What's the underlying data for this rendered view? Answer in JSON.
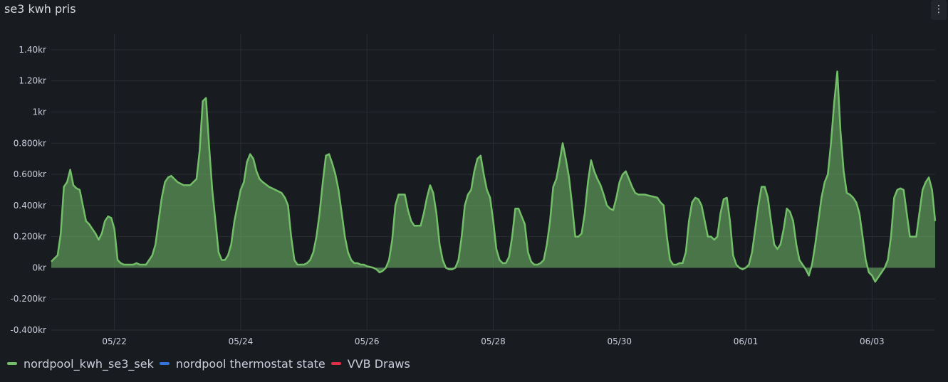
{
  "panel": {
    "title": "se3 kwh pris",
    "menu_icon": "⋮"
  },
  "chart_data": {
    "type": "area",
    "title": "se3 kwh pris",
    "ylim": [
      -0.4,
      1.5
    ],
    "yticks": [
      {
        "v": 1.4,
        "label": "1.40kr"
      },
      {
        "v": 1.2,
        "label": "1.20kr"
      },
      {
        "v": 1.0,
        "label": "1kr"
      },
      {
        "v": 0.8,
        "label": "0.800kr"
      },
      {
        "v": 0.6,
        "label": "0.600kr"
      },
      {
        "v": 0.4,
        "label": "0.400kr"
      },
      {
        "v": 0.2,
        "label": "0.200kr"
      },
      {
        "v": 0.0,
        "label": "0kr"
      },
      {
        "v": -0.2,
        "label": "-0.200kr"
      },
      {
        "v": -0.4,
        "label": "-0.400kr"
      }
    ],
    "xlim_days": [
      0,
      14
    ],
    "xticks": [
      {
        "day": 1,
        "label": "05/22"
      },
      {
        "day": 3,
        "label": "05/24"
      },
      {
        "day": 5,
        "label": "05/26"
      },
      {
        "day": 7,
        "label": "05/28"
      },
      {
        "day": 9,
        "label": "05/30"
      },
      {
        "day": 11,
        "label": "06/01"
      },
      {
        "day": 13,
        "label": "06/03"
      }
    ],
    "grid": true,
    "legend_position": "bottom-left",
    "series": [
      {
        "name": "nordpool_kwh_se3_sek",
        "color": "#73bf69",
        "fill": "#73bf69",
        "points": [
          [
            0.0,
            0.04
          ],
          [
            0.05,
            0.06
          ],
          [
            0.1,
            0.08
          ],
          [
            0.15,
            0.22
          ],
          [
            0.2,
            0.52
          ],
          [
            0.25,
            0.55
          ],
          [
            0.3,
            0.63
          ],
          [
            0.35,
            0.53
          ],
          [
            0.4,
            0.51
          ],
          [
            0.45,
            0.5
          ],
          [
            0.5,
            0.4
          ],
          [
            0.55,
            0.3
          ],
          [
            0.6,
            0.28
          ],
          [
            0.65,
            0.25
          ],
          [
            0.7,
            0.22
          ],
          [
            0.75,
            0.18
          ],
          [
            0.8,
            0.22
          ],
          [
            0.85,
            0.3
          ],
          [
            0.9,
            0.33
          ],
          [
            0.95,
            0.32
          ],
          [
            1.0,
            0.25
          ],
          [
            1.05,
            0.05
          ],
          [
            1.1,
            0.03
          ],
          [
            1.15,
            0.02
          ],
          [
            1.2,
            0.02
          ],
          [
            1.3,
            0.02
          ],
          [
            1.35,
            0.03
          ],
          [
            1.4,
            0.02
          ],
          [
            1.5,
            0.02
          ],
          [
            1.55,
            0.05
          ],
          [
            1.6,
            0.08
          ],
          [
            1.65,
            0.15
          ],
          [
            1.7,
            0.3
          ],
          [
            1.75,
            0.45
          ],
          [
            1.8,
            0.55
          ],
          [
            1.85,
            0.58
          ],
          [
            1.9,
            0.59
          ],
          [
            1.95,
            0.57
          ],
          [
            2.0,
            0.55
          ],
          [
            2.05,
            0.54
          ],
          [
            2.1,
            0.53
          ],
          [
            2.15,
            0.53
          ],
          [
            2.2,
            0.53
          ],
          [
            2.25,
            0.55
          ],
          [
            2.3,
            0.57
          ],
          [
            2.35,
            0.75
          ],
          [
            2.4,
            1.07
          ],
          [
            2.45,
            1.09
          ],
          [
            2.5,
            0.78
          ],
          [
            2.55,
            0.5
          ],
          [
            2.6,
            0.3
          ],
          [
            2.65,
            0.1
          ],
          [
            2.7,
            0.05
          ],
          [
            2.75,
            0.05
          ],
          [
            2.8,
            0.08
          ],
          [
            2.85,
            0.15
          ],
          [
            2.9,
            0.3
          ],
          [
            2.95,
            0.4
          ],
          [
            3.0,
            0.5
          ],
          [
            3.05,
            0.55
          ],
          [
            3.1,
            0.68
          ],
          [
            3.15,
            0.73
          ],
          [
            3.2,
            0.7
          ],
          [
            3.25,
            0.62
          ],
          [
            3.3,
            0.57
          ],
          [
            3.35,
            0.55
          ],
          [
            3.45,
            0.52
          ],
          [
            3.55,
            0.5
          ],
          [
            3.65,
            0.48
          ],
          [
            3.7,
            0.45
          ],
          [
            3.75,
            0.4
          ],
          [
            3.8,
            0.2
          ],
          [
            3.85,
            0.05
          ],
          [
            3.9,
            0.02
          ],
          [
            3.95,
            0.02
          ],
          [
            4.0,
            0.02
          ],
          [
            4.05,
            0.03
          ],
          [
            4.1,
            0.05
          ],
          [
            4.15,
            0.1
          ],
          [
            4.2,
            0.2
          ],
          [
            4.25,
            0.35
          ],
          [
            4.3,
            0.55
          ],
          [
            4.35,
            0.72
          ],
          [
            4.4,
            0.73
          ],
          [
            4.45,
            0.67
          ],
          [
            4.5,
            0.6
          ],
          [
            4.55,
            0.5
          ],
          [
            4.6,
            0.35
          ],
          [
            4.65,
            0.2
          ],
          [
            4.7,
            0.1
          ],
          [
            4.75,
            0.05
          ],
          [
            4.8,
            0.03
          ],
          [
            4.85,
            0.03
          ],
          [
            4.9,
            0.02
          ],
          [
            4.95,
            0.02
          ],
          [
            5.0,
            0.01
          ],
          [
            5.1,
            0.0
          ],
          [
            5.15,
            -0.01
          ],
          [
            5.2,
            -0.03
          ],
          [
            5.25,
            -0.02
          ],
          [
            5.3,
            0.0
          ],
          [
            5.35,
            0.05
          ],
          [
            5.4,
            0.18
          ],
          [
            5.45,
            0.4
          ],
          [
            5.5,
            0.47
          ],
          [
            5.55,
            0.47
          ],
          [
            5.6,
            0.47
          ],
          [
            5.65,
            0.37
          ],
          [
            5.7,
            0.3
          ],
          [
            5.75,
            0.27
          ],
          [
            5.8,
            0.27
          ],
          [
            5.85,
            0.27
          ],
          [
            5.9,
            0.35
          ],
          [
            5.95,
            0.45
          ],
          [
            6.0,
            0.53
          ],
          [
            6.05,
            0.48
          ],
          [
            6.1,
            0.35
          ],
          [
            6.15,
            0.15
          ],
          [
            6.2,
            0.05
          ],
          [
            6.25,
            0.0
          ],
          [
            6.3,
            -0.01
          ],
          [
            6.35,
            -0.01
          ],
          [
            6.4,
            0.0
          ],
          [
            6.45,
            0.05
          ],
          [
            6.5,
            0.2
          ],
          [
            6.55,
            0.4
          ],
          [
            6.6,
            0.47
          ],
          [
            6.65,
            0.5
          ],
          [
            6.7,
            0.62
          ],
          [
            6.75,
            0.7
          ],
          [
            6.8,
            0.72
          ],
          [
            6.85,
            0.6
          ],
          [
            6.9,
            0.5
          ],
          [
            6.95,
            0.45
          ],
          [
            7.0,
            0.3
          ],
          [
            7.05,
            0.12
          ],
          [
            7.1,
            0.05
          ],
          [
            7.15,
            0.03
          ],
          [
            7.2,
            0.03
          ],
          [
            7.25,
            0.07
          ],
          [
            7.3,
            0.2
          ],
          [
            7.35,
            0.38
          ],
          [
            7.4,
            0.38
          ],
          [
            7.45,
            0.33
          ],
          [
            7.5,
            0.28
          ],
          [
            7.55,
            0.1
          ],
          [
            7.6,
            0.04
          ],
          [
            7.65,
            0.02
          ],
          [
            7.7,
            0.02
          ],
          [
            7.75,
            0.03
          ],
          [
            7.8,
            0.05
          ],
          [
            7.85,
            0.15
          ],
          [
            7.9,
            0.3
          ],
          [
            7.95,
            0.52
          ],
          [
            8.0,
            0.57
          ],
          [
            8.05,
            0.68
          ],
          [
            8.1,
            0.8
          ],
          [
            8.15,
            0.7
          ],
          [
            8.2,
            0.58
          ],
          [
            8.25,
            0.4
          ],
          [
            8.3,
            0.2
          ],
          [
            8.35,
            0.2
          ],
          [
            8.4,
            0.22
          ],
          [
            8.45,
            0.35
          ],
          [
            8.5,
            0.55
          ],
          [
            8.55,
            0.69
          ],
          [
            8.6,
            0.62
          ],
          [
            8.65,
            0.57
          ],
          [
            8.7,
            0.53
          ],
          [
            8.75,
            0.47
          ],
          [
            8.8,
            0.4
          ],
          [
            8.85,
            0.38
          ],
          [
            8.9,
            0.37
          ],
          [
            8.95,
            0.45
          ],
          [
            9.0,
            0.55
          ],
          [
            9.05,
            0.6
          ],
          [
            9.1,
            0.62
          ],
          [
            9.15,
            0.57
          ],
          [
            9.2,
            0.52
          ],
          [
            9.25,
            0.48
          ],
          [
            9.3,
            0.47
          ],
          [
            9.4,
            0.47
          ],
          [
            9.5,
            0.46
          ],
          [
            9.6,
            0.45
          ],
          [
            9.65,
            0.42
          ],
          [
            9.7,
            0.4
          ],
          [
            9.75,
            0.2
          ],
          [
            9.8,
            0.05
          ],
          [
            9.85,
            0.02
          ],
          [
            9.9,
            0.02
          ],
          [
            9.95,
            0.03
          ],
          [
            10.0,
            0.03
          ],
          [
            10.05,
            0.1
          ],
          [
            10.1,
            0.3
          ],
          [
            10.15,
            0.42
          ],
          [
            10.2,
            0.45
          ],
          [
            10.25,
            0.44
          ],
          [
            10.3,
            0.4
          ],
          [
            10.35,
            0.3
          ],
          [
            10.4,
            0.2
          ],
          [
            10.45,
            0.2
          ],
          [
            10.5,
            0.18
          ],
          [
            10.55,
            0.2
          ],
          [
            10.6,
            0.35
          ],
          [
            10.65,
            0.44
          ],
          [
            10.7,
            0.45
          ],
          [
            10.75,
            0.3
          ],
          [
            10.8,
            0.08
          ],
          [
            10.85,
            0.02
          ],
          [
            10.9,
            0.0
          ],
          [
            10.95,
            -0.01
          ],
          [
            11.0,
            0.0
          ],
          [
            11.05,
            0.02
          ],
          [
            11.1,
            0.1
          ],
          [
            11.15,
            0.25
          ],
          [
            11.2,
            0.4
          ],
          [
            11.25,
            0.52
          ],
          [
            11.3,
            0.52
          ],
          [
            11.35,
            0.45
          ],
          [
            11.4,
            0.3
          ],
          [
            11.45,
            0.15
          ],
          [
            11.5,
            0.12
          ],
          [
            11.55,
            0.15
          ],
          [
            11.6,
            0.25
          ],
          [
            11.65,
            0.38
          ],
          [
            11.7,
            0.36
          ],
          [
            11.75,
            0.3
          ],
          [
            11.8,
            0.15
          ],
          [
            11.85,
            0.05
          ],
          [
            11.9,
            0.02
          ],
          [
            11.95,
            -0.01
          ],
          [
            12.0,
            -0.05
          ],
          [
            12.05,
            0.02
          ],
          [
            12.1,
            0.15
          ],
          [
            12.15,
            0.3
          ],
          [
            12.2,
            0.45
          ],
          [
            12.25,
            0.55
          ],
          [
            12.3,
            0.6
          ],
          [
            12.35,
            0.8
          ],
          [
            12.4,
            1.06
          ],
          [
            12.45,
            1.26
          ],
          [
            12.5,
            0.88
          ],
          [
            12.55,
            0.62
          ],
          [
            12.6,
            0.48
          ],
          [
            12.65,
            0.47
          ],
          [
            12.7,
            0.45
          ],
          [
            12.75,
            0.42
          ],
          [
            12.8,
            0.35
          ],
          [
            12.85,
            0.2
          ],
          [
            12.9,
            0.05
          ],
          [
            12.95,
            -0.03
          ],
          [
            13.0,
            -0.05
          ],
          [
            13.05,
            -0.09
          ],
          [
            13.1,
            -0.06
          ],
          [
            13.15,
            -0.03
          ],
          [
            13.2,
            0.0
          ],
          [
            13.25,
            0.05
          ],
          [
            13.3,
            0.2
          ],
          [
            13.35,
            0.45
          ],
          [
            13.4,
            0.5
          ],
          [
            13.45,
            0.51
          ],
          [
            13.5,
            0.5
          ],
          [
            13.55,
            0.35
          ],
          [
            13.6,
            0.2
          ],
          [
            13.65,
            0.2
          ],
          [
            13.7,
            0.2
          ],
          [
            13.75,
            0.35
          ],
          [
            13.8,
            0.5
          ],
          [
            13.85,
            0.55
          ],
          [
            13.9,
            0.58
          ],
          [
            13.95,
            0.5
          ],
          [
            14.0,
            0.3
          ]
        ]
      },
      {
        "name": "nordpool thermostat state",
        "color": "#3274d9",
        "points": []
      },
      {
        "name": "VVB Draws",
        "color": "#e02f44",
        "points": []
      }
    ]
  }
}
